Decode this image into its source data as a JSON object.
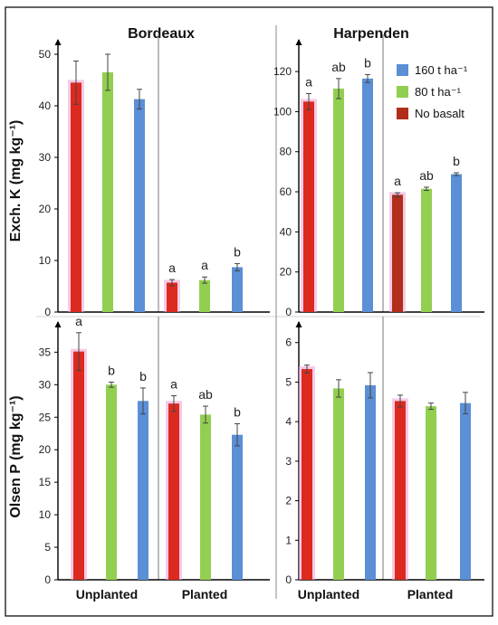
{
  "colors": {
    "no_basalt": "#dc2a1e",
    "no_basalt_planted_harpenden": "#b02e1a",
    "t80": "#92cf50",
    "t160": "#5b8fd6",
    "glow": "#f0a6d8",
    "errorbar": "#444444",
    "axis": "#000000",
    "frame": "#111111",
    "divider": "#777777"
  },
  "chart_data": [
    {
      "type": "bar",
      "panel": "top-left",
      "title": "Bordeaux",
      "ylabel": "Exch. K (mg kg⁻¹)",
      "ylim": [
        0,
        50
      ],
      "yticks": [
        0,
        10,
        20,
        30,
        40,
        50
      ],
      "groups": [
        {
          "label": "",
          "values": [
            44.5,
            46.5,
            41.3
          ],
          "errors": [
            4.2,
            3.5,
            1.9
          ],
          "letters": [
            "",
            "",
            ""
          ]
        },
        {
          "label": "",
          "values": [
            5.7,
            6.2,
            8.7
          ],
          "errors": [
            0.6,
            0.6,
            0.7
          ],
          "letters": [
            "a",
            "a",
            "b"
          ]
        }
      ],
      "series": [
        {
          "name": "No basalt"
        },
        {
          "name": "80 t ha⁻¹"
        },
        {
          "name": "160 t ha⁻¹"
        }
      ]
    },
    {
      "type": "bar",
      "panel": "top-right",
      "title": "Harpenden",
      "ylabel": "",
      "ylim": [
        0,
        125
      ],
      "yticks": [
        0,
        20,
        40,
        60,
        80,
        100,
        120
      ],
      "groups": [
        {
          "label": "",
          "values": [
            105,
            111.5,
            116.5
          ],
          "errors": [
            4,
            5,
            2
          ],
          "letters": [
            "a",
            "ab",
            "b"
          ]
        },
        {
          "label": "",
          "values": [
            58.5,
            61.5,
            68.8
          ],
          "errors": [
            1,
            0.8,
            0.7
          ],
          "letters": [
            "a",
            "ab",
            "b"
          ]
        }
      ],
      "series": [
        {
          "name": "No basalt"
        },
        {
          "name": "80 t ha⁻¹"
        },
        {
          "name": "160 t ha⁻¹"
        }
      ]
    },
    {
      "type": "bar",
      "panel": "bottom-left",
      "title": "",
      "ylabel": "Olsen P (mg kg⁻¹)",
      "ylim": [
        0,
        37
      ],
      "yticks": [
        0,
        5,
        10,
        15,
        20,
        25,
        30,
        35
      ],
      "groups": [
        {
          "label": "Unplanted",
          "values": [
            35.1,
            30,
            27.5
          ],
          "errors": [
            2.9,
            0.4,
            2
          ],
          "letters": [
            "a",
            "b",
            "b"
          ]
        },
        {
          "label": "Planted",
          "values": [
            27.1,
            25.4,
            22.3
          ],
          "errors": [
            1.2,
            1.3,
            1.7
          ],
          "letters": [
            "a",
            "ab",
            "b"
          ]
        }
      ],
      "series": [
        {
          "name": "No basalt"
        },
        {
          "name": "80 t ha⁻¹"
        },
        {
          "name": "160 t ha⁻¹"
        }
      ]
    },
    {
      "type": "bar",
      "panel": "bottom-right",
      "title": "",
      "ylabel": "",
      "ylim": [
        0,
        6.2
      ],
      "yticks": [
        0,
        1,
        2,
        3,
        4,
        5,
        6
      ],
      "groups": [
        {
          "label": "Unplanted",
          "values": [
            5.33,
            4.84,
            4.92
          ],
          "errors": [
            0.1,
            0.22,
            0.32
          ],
          "letters": [
            "",
            "",
            ""
          ]
        },
        {
          "label": "Planted",
          "values": [
            4.52,
            4.39,
            4.47
          ],
          "errors": [
            0.15,
            0.08,
            0.27
          ],
          "letters": [
            "",
            "",
            ""
          ]
        }
      ],
      "series": [
        {
          "name": "No basalt"
        },
        {
          "name": "80 t ha⁻¹"
        },
        {
          "name": "160 t ha⁻¹"
        }
      ]
    }
  ],
  "legend": {
    "placement": "top-right",
    "items": [
      {
        "label": "160 t ha⁻¹",
        "color": "#5b8fd6"
      },
      {
        "label": "80 t ha⁻¹",
        "color": "#92cf50"
      },
      {
        "label": "No basalt",
        "color": "#b02e1a"
      }
    ]
  }
}
